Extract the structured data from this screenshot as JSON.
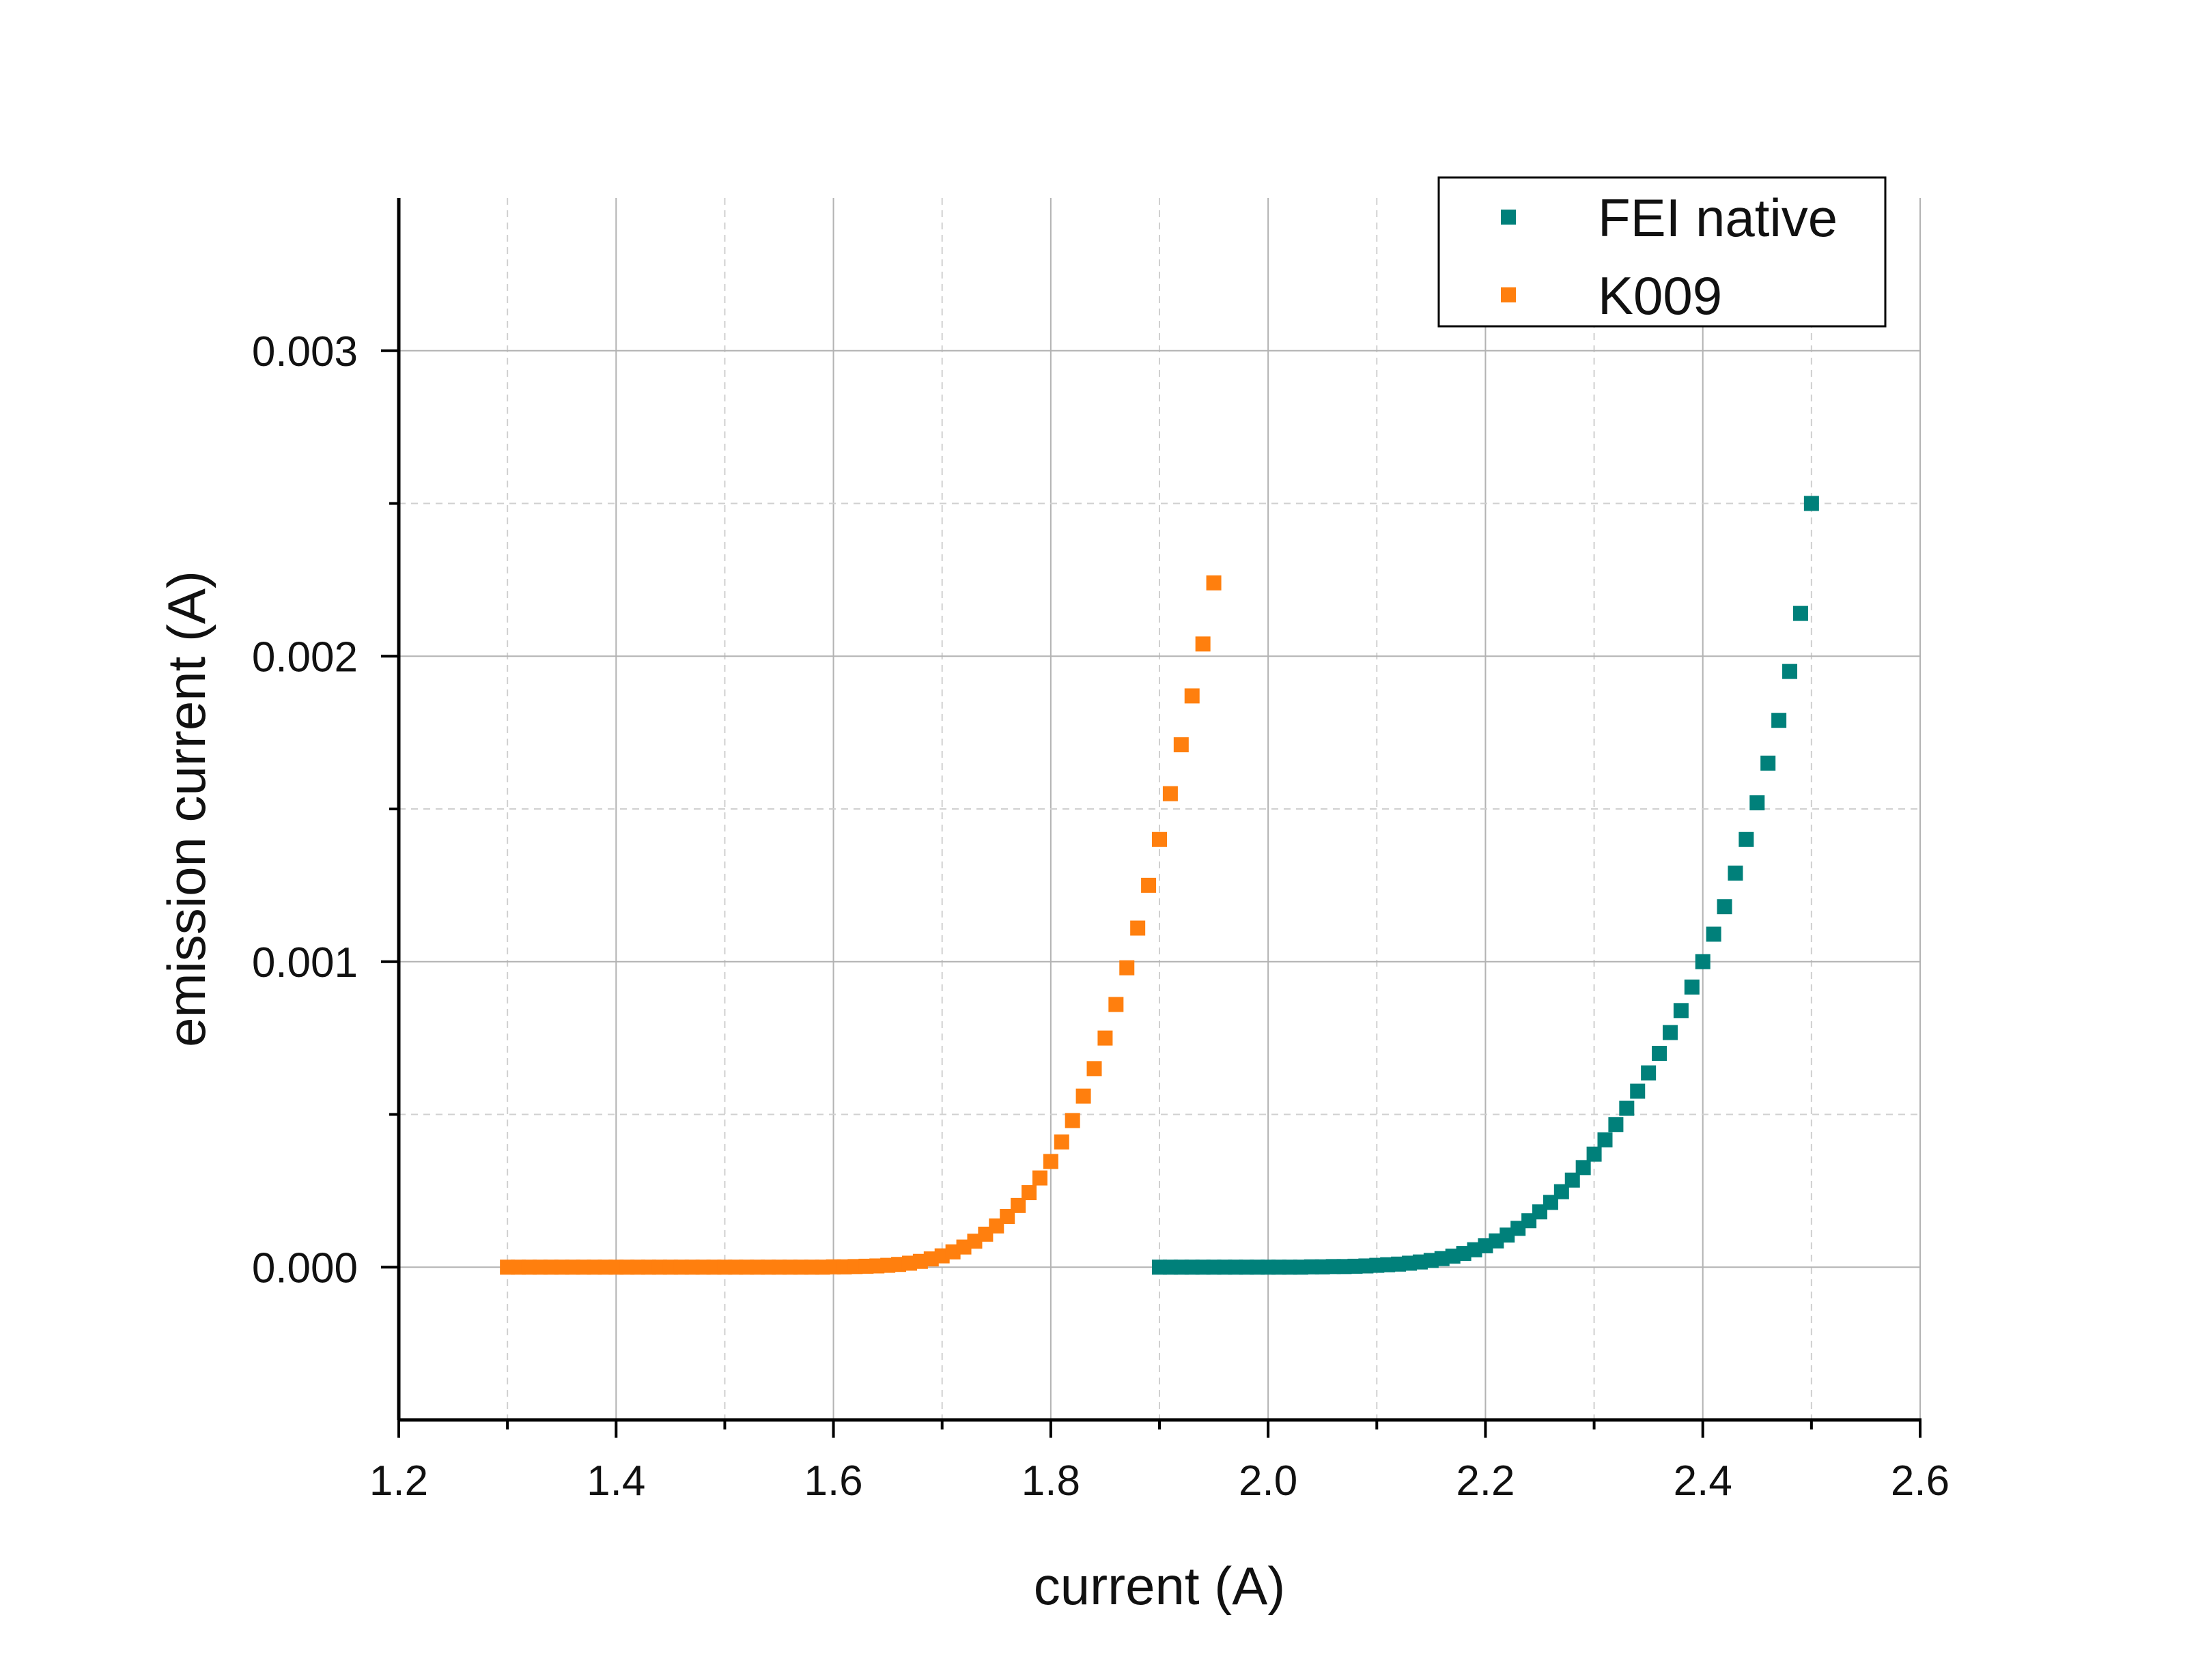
{
  "chart_data": {
    "type": "scatter",
    "xlabel": "current (A)",
    "ylabel": "emission current (A)",
    "xlim": [
      1.2,
      2.6
    ],
    "ylim": [
      -0.0005,
      0.0035
    ],
    "x_ticks": [
      1.2,
      1.4,
      1.6,
      1.8,
      2.0,
      2.2,
      2.4,
      2.6
    ],
    "x_tick_labels": [
      "1.2",
      "1.4",
      "1.6",
      "1.8",
      "2.0",
      "2.2",
      "2.4",
      "2.6"
    ],
    "y_ticks": [
      0.0,
      0.001,
      0.002,
      0.003
    ],
    "y_tick_labels": [
      "0.000",
      "0.001",
      "0.002",
      "0.003"
    ],
    "grid": true,
    "legend_position": "top-right",
    "legend": [
      "FEI native",
      "K009"
    ],
    "series": [
      {
        "name": "FEI native",
        "color": "#00807a",
        "x": [
          1.9,
          1.91,
          1.92,
          1.93,
          1.94,
          1.95,
          1.96,
          1.97,
          1.98,
          1.99,
          2.0,
          2.01,
          2.02,
          2.03,
          2.04,
          2.05,
          2.06,
          2.07,
          2.08,
          2.09,
          2.1,
          2.11,
          2.12,
          2.13,
          2.14,
          2.15,
          2.16,
          2.17,
          2.18,
          2.19,
          2.2,
          2.21,
          2.22,
          2.23,
          2.24,
          2.25,
          2.26,
          2.27,
          2.28,
          2.29,
          2.3,
          2.31,
          2.32,
          2.33,
          2.34,
          2.35,
          2.36,
          2.37,
          2.38,
          2.39,
          2.4,
          2.41,
          2.42,
          2.43,
          2.44,
          2.45,
          2.46,
          2.47,
          2.48,
          2.49,
          2.5
        ],
        "y": [
          0.0,
          0.0,
          0.0,
          0.0,
          0.0,
          0.0,
          0.0,
          0.0,
          0.0,
          0.0,
          0.0,
          0.0,
          0.0,
          0.0,
          1e-06,
          1e-06,
          2e-06,
          2e-06,
          3e-06,
          4e-06,
          6e-06,
          8e-06,
          1e-05,
          1.3e-05,
          1.7e-05,
          2.2e-05,
          2.8e-05,
          3.6e-05,
          4.5e-05,
          5.7e-05,
          7e-05,
          8.6e-05,
          0.000105,
          0.000127,
          0.000152,
          0.000181,
          0.000212,
          0.000247,
          0.000285,
          0.000326,
          0.00037,
          0.000417,
          0.000467,
          0.00052,
          0.000576,
          0.000636,
          0.0007,
          0.000768,
          0.00084,
          0.000917,
          0.001,
          0.00109,
          0.00118,
          0.00129,
          0.0014,
          0.00152,
          0.00165,
          0.00179,
          0.00195,
          0.00214,
          0.0025
        ]
      },
      {
        "name": "K009",
        "color": "#ff7f0e",
        "x": [
          1.3,
          1.31,
          1.32,
          1.33,
          1.34,
          1.35,
          1.36,
          1.37,
          1.38,
          1.39,
          1.4,
          1.41,
          1.42,
          1.43,
          1.44,
          1.45,
          1.46,
          1.47,
          1.48,
          1.49,
          1.5,
          1.51,
          1.52,
          1.53,
          1.54,
          1.55,
          1.56,
          1.57,
          1.58,
          1.59,
          1.6,
          1.61,
          1.62,
          1.63,
          1.64,
          1.65,
          1.66,
          1.67,
          1.68,
          1.69,
          1.7,
          1.71,
          1.72,
          1.73,
          1.74,
          1.75,
          1.76,
          1.77,
          1.78,
          1.79,
          1.8,
          1.81,
          1.82,
          1.83,
          1.84,
          1.85,
          1.86,
          1.87,
          1.88,
          1.89,
          1.9,
          1.91,
          1.92,
          1.93,
          1.94,
          1.95
        ],
        "y": [
          0.0,
          0.0,
          0.0,
          0.0,
          0.0,
          0.0,
          0.0,
          0.0,
          0.0,
          0.0,
          0.0,
          0.0,
          0.0,
          0.0,
          0.0,
          0.0,
          0.0,
          0.0,
          0.0,
          0.0,
          0.0,
          0.0,
          0.0,
          0.0,
          0.0,
          0.0,
          0.0,
          0.0,
          0.0,
          0.0,
          1e-06,
          1e-06,
          2e-06,
          3e-06,
          4e-06,
          6e-06,
          9e-06,
          1.3e-05,
          1.9e-05,
          2.7e-05,
          3.7e-05,
          5e-05,
          6.6e-05,
          8.5e-05,
          0.000108,
          0.000135,
          0.000166,
          0.000202,
          0.000244,
          0.000292,
          0.000346,
          0.00041,
          0.00048,
          0.00056,
          0.00065,
          0.00075,
          0.00086,
          0.00098,
          0.00111,
          0.00125,
          0.0014,
          0.00155,
          0.00171,
          0.00187,
          0.00204,
          0.00224
        ]
      }
    ]
  }
}
